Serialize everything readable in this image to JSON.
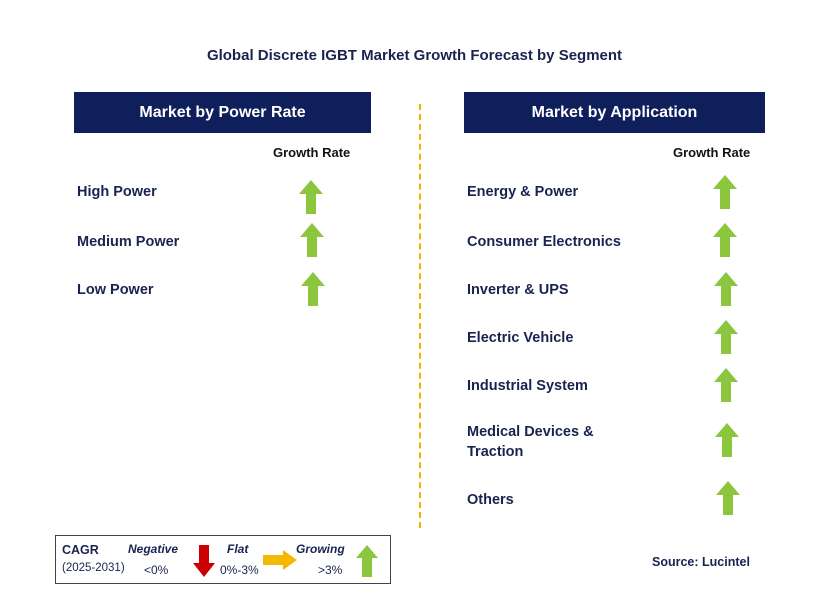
{
  "title": "Global Discrete IGBT Market Growth Forecast by Segment",
  "left_panel": {
    "header": "Market by Power Rate",
    "column_label": "Growth Rate",
    "rows": [
      {
        "label": "High Power",
        "trend": "growing"
      },
      {
        "label": "Medium Power",
        "trend": "growing"
      },
      {
        "label": "Low Power",
        "trend": "growing"
      }
    ]
  },
  "right_panel": {
    "header": "Market by Application",
    "column_label": "Growth Rate",
    "rows": [
      {
        "label": "Energy & Power",
        "trend": "growing"
      },
      {
        "label": "Consumer Electronics",
        "trend": "growing"
      },
      {
        "label": "Inverter & UPS",
        "trend": "growing"
      },
      {
        "label": "Electric Vehicle",
        "trend": "growing"
      },
      {
        "label": "Industrial System",
        "trend": "growing"
      },
      {
        "label": "Medical Devices &",
        "label_line2": "Traction",
        "trend": "growing"
      },
      {
        "label": "Others",
        "trend": "growing"
      }
    ]
  },
  "legend": {
    "cagr_label": "CAGR",
    "period": "(2025-2031)",
    "negative_label": "Negative",
    "negative_range": "<0%",
    "flat_label": "Flat",
    "flat_range": "0%-3%",
    "growing_label": "Growing",
    "growing_range": ">3%"
  },
  "source": "Source: Lucintel",
  "colors": {
    "header_bg": "#0f1f5c",
    "growing": "#8cc63f",
    "negative": "#cc0000",
    "flat": "#f5b800",
    "divider": "#f0b400"
  },
  "icons": {
    "growing": "up-arrow-icon",
    "negative": "down-arrow-icon",
    "flat": "right-arrow-icon"
  }
}
